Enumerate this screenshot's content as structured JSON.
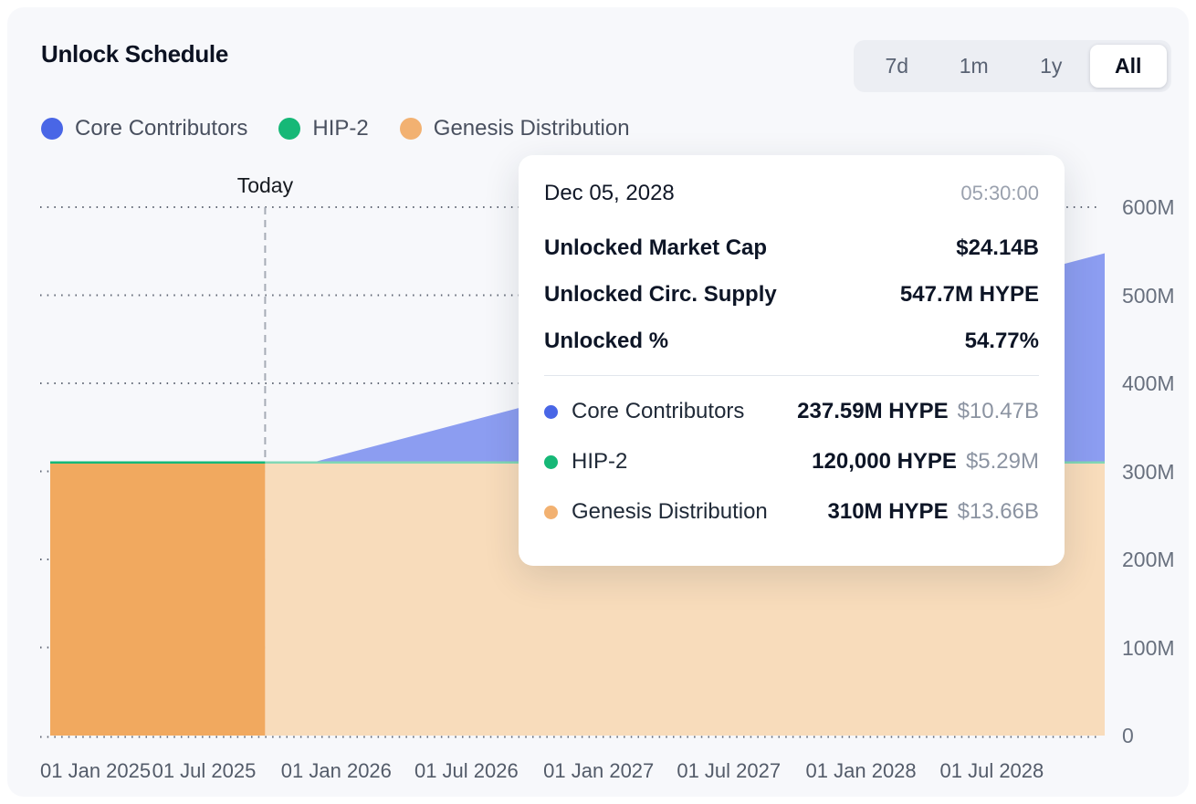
{
  "header": {
    "title": "Unlock Schedule",
    "ranges": [
      {
        "label": "7d"
      },
      {
        "label": "1m"
      },
      {
        "label": "1y"
      },
      {
        "label": "All"
      }
    ],
    "active_range": "All"
  },
  "legend": {
    "items": [
      {
        "label": "Core Contributors",
        "color": "#4966E6"
      },
      {
        "label": "HIP-2",
        "color": "#16B877"
      },
      {
        "label": "Genesis Distribution",
        "color": "#F2B171"
      }
    ]
  },
  "tooltip": {
    "date": "Dec 05, 2028",
    "time": "05:30:00",
    "stats": [
      {
        "label": "Unlocked Market Cap",
        "value": "$24.14B"
      },
      {
        "label": "Unlocked Circ. Supply",
        "value": "547.7M HYPE"
      },
      {
        "label": "Unlocked %",
        "value": "54.77%"
      }
    ],
    "series": [
      {
        "name": "Core Contributors",
        "color": "#4966E6",
        "amount": "237.59M HYPE",
        "usd": "$10.47B"
      },
      {
        "name": "HIP-2",
        "color": "#16B877",
        "amount": "120,000 HYPE",
        "usd": "$5.29M"
      },
      {
        "name": "Genesis Distribution",
        "color": "#F2B171",
        "amount": "310M HYPE",
        "usd": "$13.66B"
      }
    ]
  },
  "chart_data": {
    "type": "area",
    "stacked": true,
    "unit": "HYPE tokens (millions)",
    "title": "Unlock Schedule",
    "x_domain": [
      "2024-11-29",
      "2028-12-05"
    ],
    "today": "2025-09-24",
    "today_label": "Today",
    "ylim": [
      0,
      600
    ],
    "grid": "dotted-horizontal",
    "legend_position": "top-left",
    "y_ticks": [
      {
        "value": 0,
        "label": "0"
      },
      {
        "value": 100,
        "label": "100M"
      },
      {
        "value": 200,
        "label": "200M"
      },
      {
        "value": 300,
        "label": "300M"
      },
      {
        "value": 400,
        "label": "400M"
      },
      {
        "value": 500,
        "label": "500M"
      },
      {
        "value": 600,
        "label": "600M"
      }
    ],
    "x_ticks": [
      {
        "date": "2025-01-01",
        "label": "01 Jan 2025"
      },
      {
        "date": "2025-07-01",
        "label": "01 Jul 2025"
      },
      {
        "date": "2026-01-01",
        "label": "01 Jan 2026"
      },
      {
        "date": "2026-07-01",
        "label": "01 Jul 2026"
      },
      {
        "date": "2027-01-01",
        "label": "01 Jan 2027"
      },
      {
        "date": "2027-07-01",
        "label": "01 Jul 2027"
      },
      {
        "date": "2028-01-01",
        "label": "01 Jan 2028"
      },
      {
        "date": "2028-07-01",
        "label": "01 Jul 2028"
      }
    ],
    "series": [
      {
        "name": "Genesis Distribution",
        "points": [
          [
            "2024-11-29",
            310
          ],
          [
            "2028-12-05",
            310
          ]
        ],
        "fill_past": "#F1A95F",
        "fill_future": "#F8DCBB"
      },
      {
        "name": "HIP-2",
        "points": [
          [
            "2024-11-29",
            0.12
          ],
          [
            "2028-12-05",
            0.12
          ]
        ],
        "line_past": "#16B877",
        "line_future": "#82D7B4"
      },
      {
        "name": "Core Contributors",
        "points": [
          [
            "2024-11-29",
            0
          ],
          [
            "2025-11-29",
            0
          ],
          [
            "2028-12-05",
            237.59
          ]
        ],
        "fill_past": "#8C9DF1",
        "fill_future": "#8C9DF1"
      }
    ]
  }
}
